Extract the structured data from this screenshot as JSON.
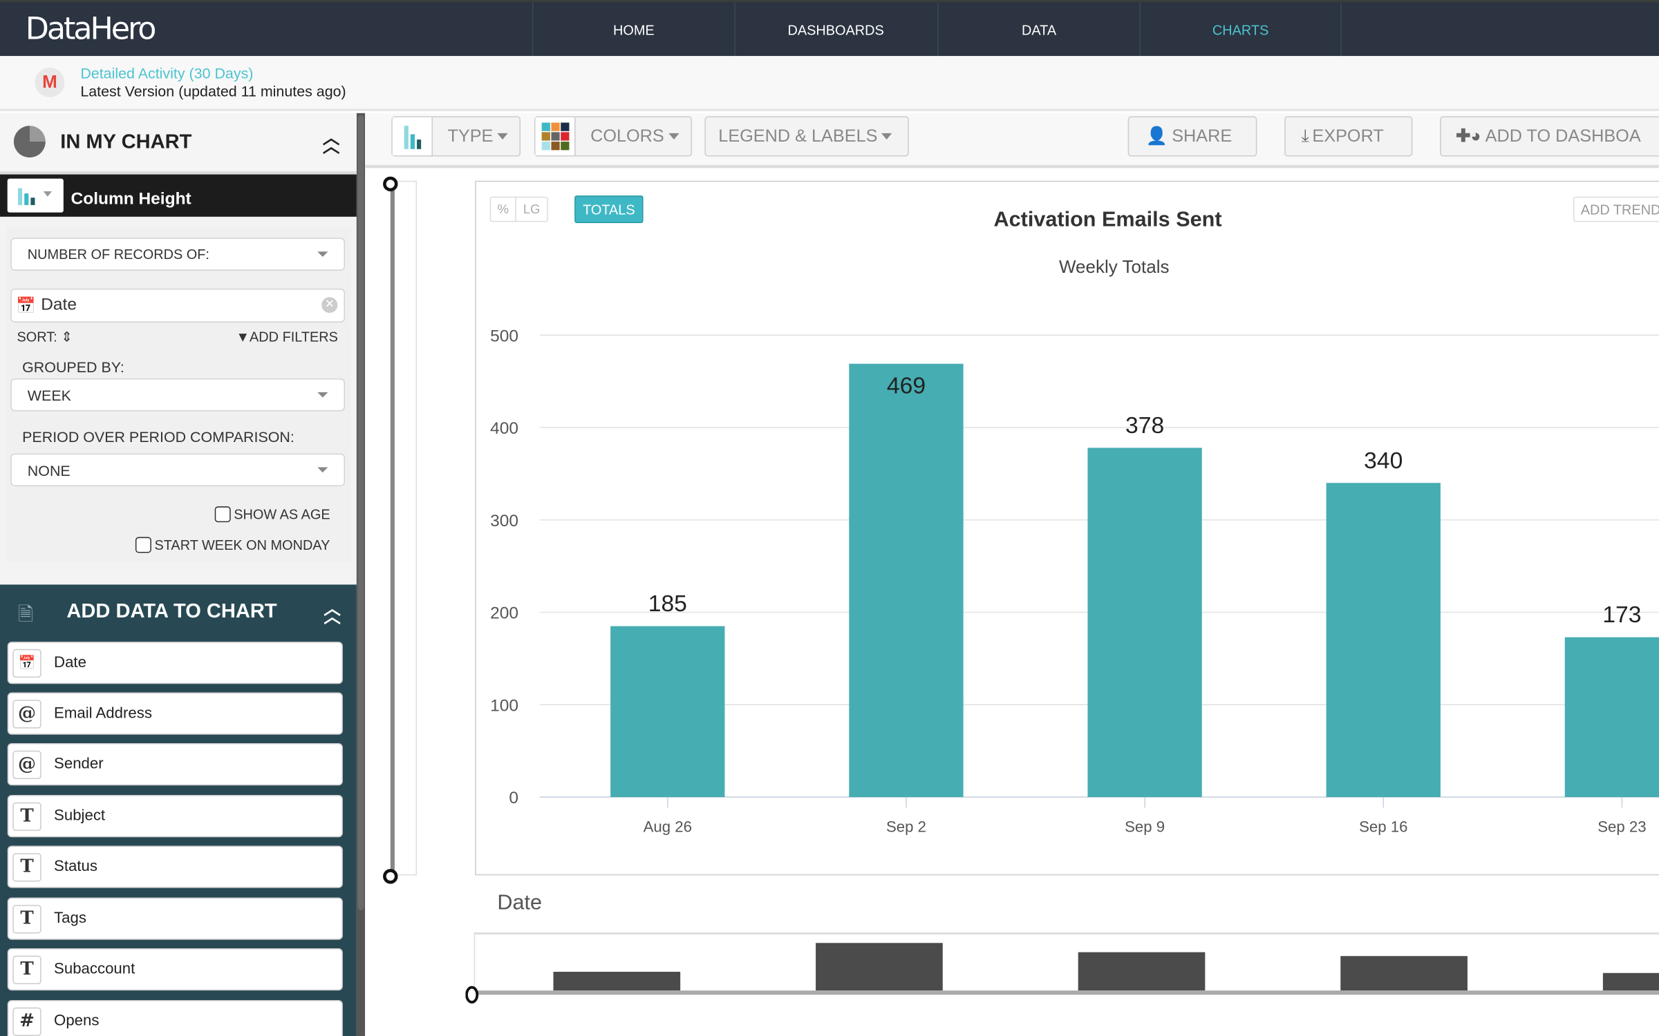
{
  "app": {
    "logo": "DataHero"
  },
  "nav": {
    "items": [
      {
        "label": "HOME",
        "active": false
      },
      {
        "label": "DASHBOARDS",
        "active": false
      },
      {
        "label": "DATA",
        "active": false
      },
      {
        "label": "CHARTS",
        "active": true
      }
    ]
  },
  "dataset": {
    "name": "Detailed Activity (30 Days)",
    "version": "Latest Version (updated 11 minutes ago)"
  },
  "in_my_chart": {
    "title": "IN MY CHART",
    "column_title": "Column Height",
    "measure": "NUMBER OF RECORDS OF:",
    "field": "Date",
    "sort_label": "SORT:",
    "add_filters": "ADD FILTERS",
    "grouped_by_label": "GROUPED BY:",
    "grouped_by": "WEEK",
    "pop_label": "PERIOD OVER PERIOD COMPARISON:",
    "pop": "NONE",
    "show_as_age": {
      "label": "SHOW AS AGE",
      "checked": false
    },
    "start_week_monday": {
      "label": "START WEEK ON MONDAY",
      "checked": false
    }
  },
  "add_data": {
    "title": "ADD DATA TO CHART",
    "fields": [
      {
        "label": "Date",
        "icon": "calendar-icon"
      },
      {
        "label": "Email Address",
        "icon": "at-icon"
      },
      {
        "label": "Sender",
        "icon": "at-icon"
      },
      {
        "label": "Subject",
        "icon": "text-icon"
      },
      {
        "label": "Status",
        "icon": "text-icon"
      },
      {
        "label": "Tags",
        "icon": "text-icon"
      },
      {
        "label": "Subaccount",
        "icon": "text-icon"
      },
      {
        "label": "Opens",
        "icon": "hash-icon"
      }
    ]
  },
  "toolbar": {
    "type": "TYPE",
    "colors": "COLORS",
    "legend": "LEGEND & LABELS",
    "share": "SHARE",
    "export": "EXPORT",
    "add_to_dashboard": "ADD TO DASHBOA"
  },
  "chart_controls": {
    "percent": "%",
    "lg": "LG",
    "totals": "TOTALS",
    "add_trend": "ADD TREND"
  },
  "colors": {
    "bar": "#46adb2",
    "accent": "#4cc3d0",
    "mini_bar": "#4b4b4b"
  },
  "chart_data": {
    "type": "bar",
    "title": "Activation Emails Sent",
    "subtitle": "Weekly Totals",
    "categories": [
      "Aug 26",
      "Sep 2",
      "Sep 9",
      "Sep 16",
      "Sep 23"
    ],
    "values": [
      185,
      469,
      378,
      340,
      173
    ],
    "ylim": [
      0,
      500
    ],
    "yticks": [
      0,
      100,
      200,
      300,
      400,
      500
    ],
    "grid": true,
    "data_labels": true
  },
  "navigator": {
    "label": "Date"
  }
}
